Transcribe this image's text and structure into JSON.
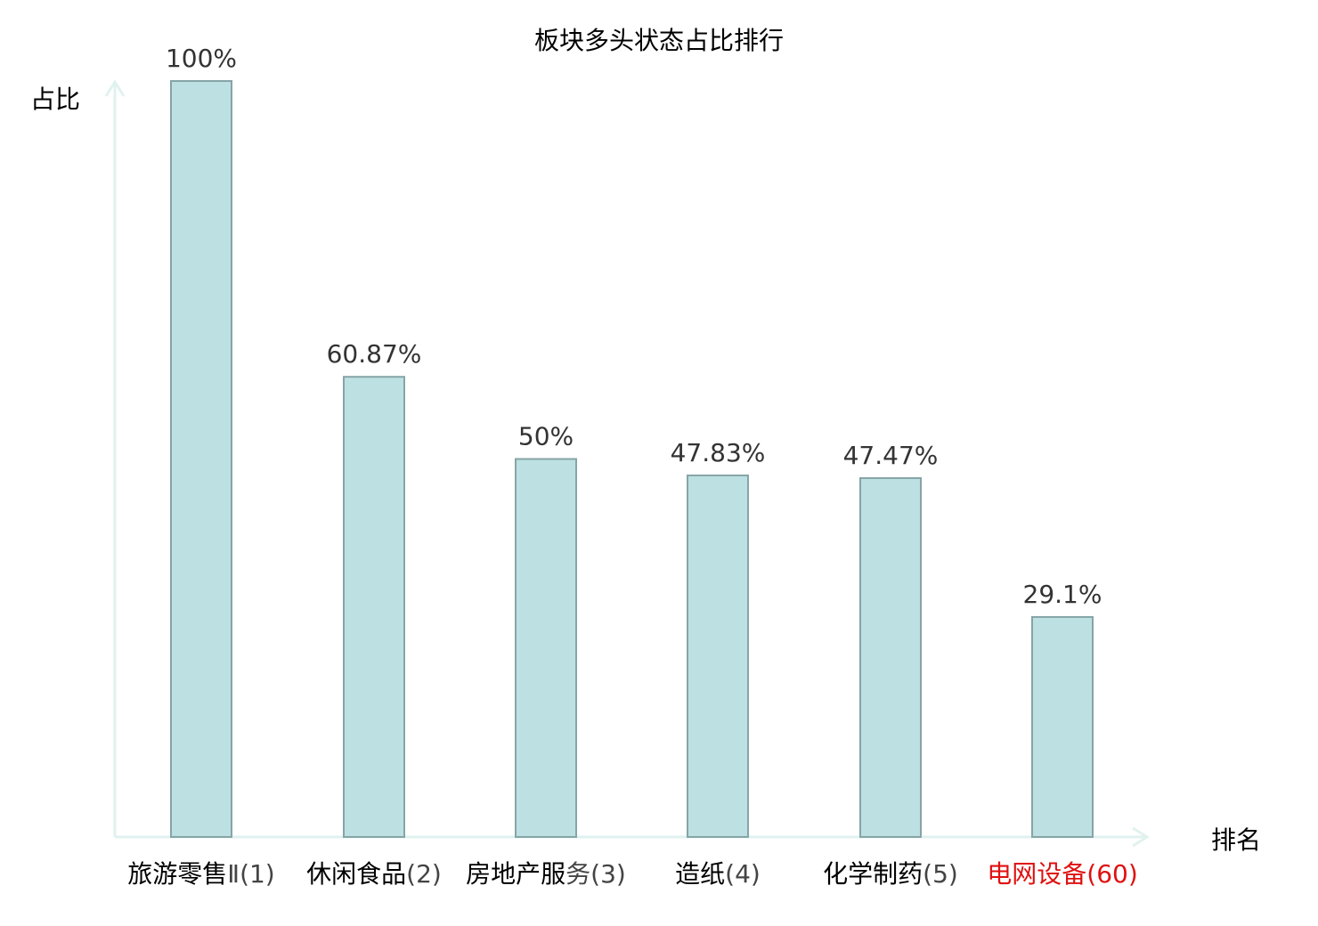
{
  "chart_data": {
    "type": "bar",
    "title": "板块多头状态占比排行",
    "ylabel": "占比",
    "xlabel": "排名",
    "categories": [
      {
        "name": "旅游零售",
        "rank": "Ⅱ(1)"
      },
      {
        "name": "休闲食品",
        "rank": "(2)"
      },
      {
        "name": "房地产服",
        "rank": "务(3)"
      },
      {
        "name": "造纸",
        "rank": "(4)"
      },
      {
        "name": "化学制药",
        "rank": "(5)"
      },
      {
        "name": "电网设备",
        "rank": "(60)"
      }
    ],
    "values": [
      100,
      60.87,
      50,
      47.83,
      47.47,
      29.1
    ],
    "value_labels": [
      "100%",
      "60.87%",
      "50%",
      "47.83%",
      "47.47%",
      "29.1%"
    ],
    "highlight_index": 5,
    "ylim": [
      0,
      100
    ],
    "grid": false,
    "colors": {
      "bar_fill": "#bde0e3",
      "bar_stroke": "#86a4a6",
      "axis": "#e0f2ef",
      "highlight_text": "#e01010"
    }
  }
}
